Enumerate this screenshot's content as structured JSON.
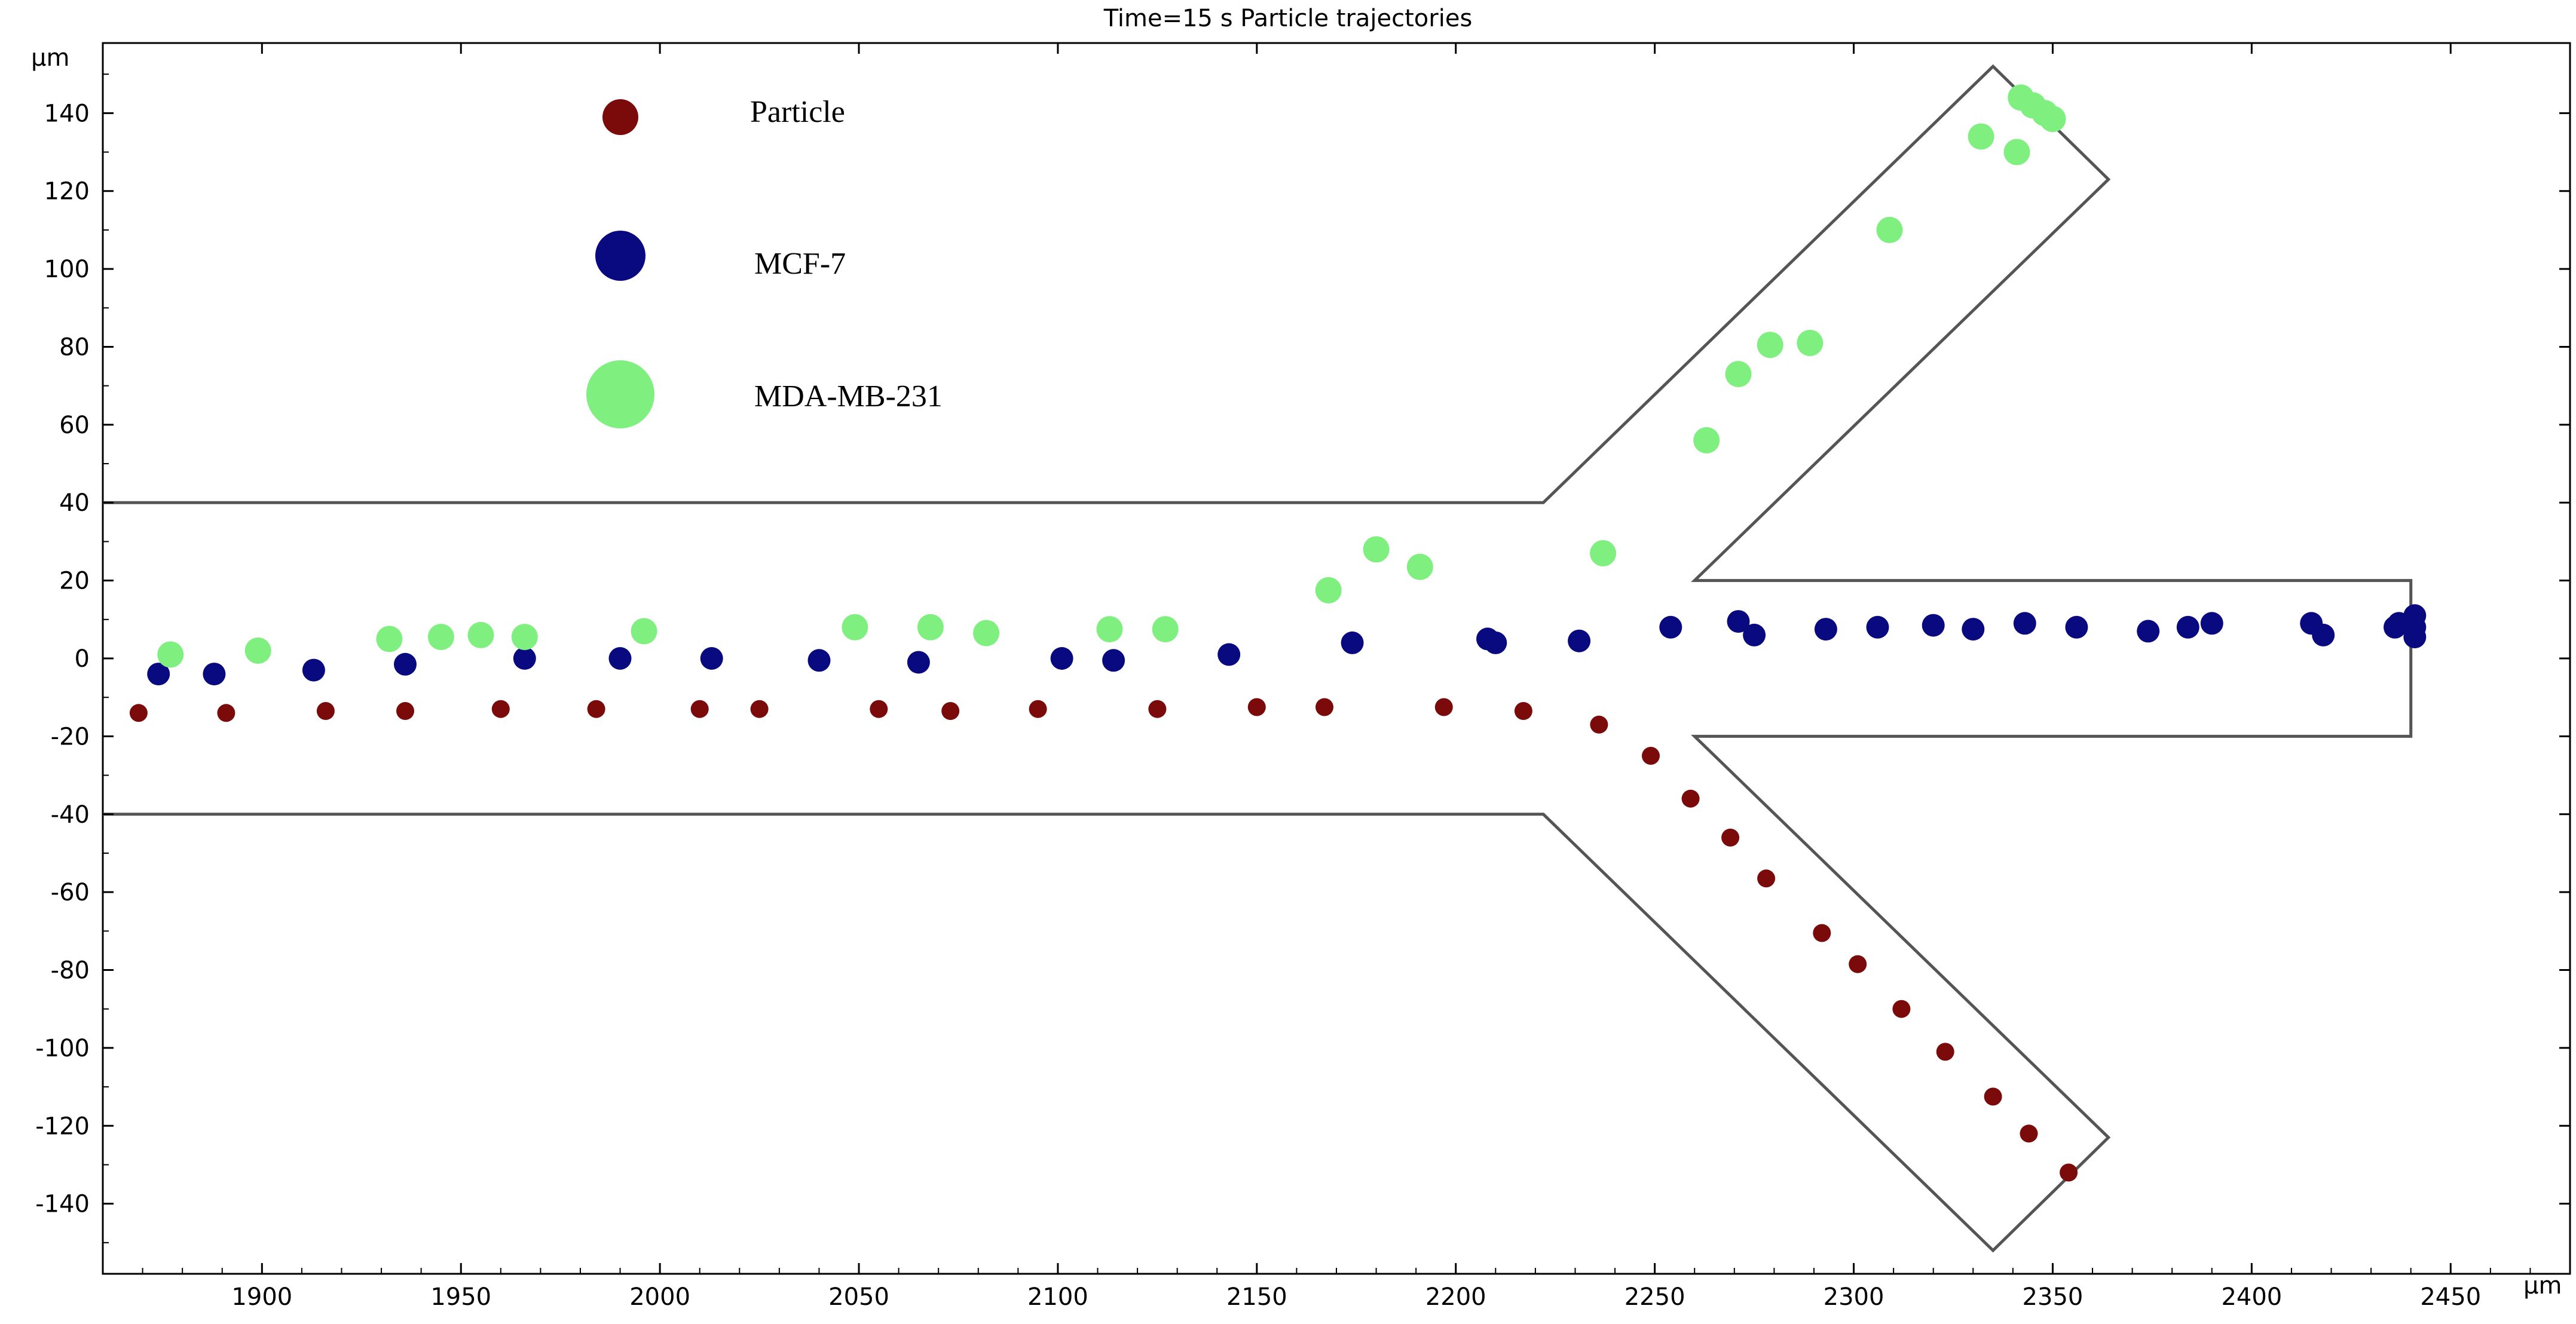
{
  "chart_data": {
    "type": "scatter",
    "title": "Time=15 s  Particle trajectories",
    "xlabel": "μm",
    "ylabel": "μm",
    "xlim": [
      1860,
      2480
    ],
    "ylim": [
      -158,
      158
    ],
    "xticks": [
      1900,
      1950,
      2000,
      2050,
      2100,
      2150,
      2200,
      2250,
      2300,
      2350,
      2400,
      2450
    ],
    "yticks": [
      140,
      120,
      100,
      80,
      60,
      40,
      20,
      0,
      -20,
      -40,
      -60,
      -80,
      -100,
      -120,
      -140
    ],
    "grid": false,
    "legend_position": "top-left",
    "channel_outline": [
      [
        1860,
        40
      ],
      [
        2222,
        40
      ],
      [
        2335,
        152
      ],
      [
        2364,
        123
      ],
      [
        2260,
        20
      ],
      [
        2440,
        20
      ],
      [
        2440,
        -20
      ],
      [
        2260,
        -20
      ],
      [
        2364,
        -123
      ],
      [
        2335,
        -152
      ],
      [
        2222,
        -40
      ],
      [
        1860,
        -40
      ]
    ],
    "series": [
      {
        "name": "Particle",
        "color": "#7b0a0a",
        "marker_size": "small",
        "points": [
          [
            1869,
            -14
          ],
          [
            1891,
            -14
          ],
          [
            1916,
            -13.5
          ],
          [
            1936,
            -13.5
          ],
          [
            1960,
            -13
          ],
          [
            1984,
            -13
          ],
          [
            2010,
            -13
          ],
          [
            2025,
            -13
          ],
          [
            2055,
            -13
          ],
          [
            2073,
            -13.5
          ],
          [
            2095,
            -13
          ],
          [
            2125,
            -13
          ],
          [
            2150,
            -12.5
          ],
          [
            2167,
            -12.5
          ],
          [
            2197,
            -12.5
          ],
          [
            2217,
            -13.5
          ],
          [
            2236,
            -17
          ],
          [
            2249,
            -25
          ],
          [
            2259,
            -36
          ],
          [
            2269,
            -46
          ],
          [
            2278,
            -56.5
          ],
          [
            2292,
            -70.5
          ],
          [
            2301,
            -78.5
          ],
          [
            2312,
            -90
          ],
          [
            2323,
            -101
          ],
          [
            2335,
            -112.5
          ],
          [
            2344,
            -122
          ],
          [
            2354,
            -132
          ]
        ]
      },
      {
        "name": "MCF-7",
        "color": "#0a0a80",
        "marker_size": "medium",
        "points": [
          [
            1874,
            -4
          ],
          [
            1888,
            -4
          ],
          [
            1913,
            -3
          ],
          [
            1936,
            -1.5
          ],
          [
            1966,
            0
          ],
          [
            1990,
            0
          ],
          [
            2013,
            0
          ],
          [
            2040,
            -0.5
          ],
          [
            2065,
            -1
          ],
          [
            2101,
            0
          ],
          [
            2114,
            -0.5
          ],
          [
            2143,
            1
          ],
          [
            2174,
            4
          ],
          [
            2208,
            5
          ],
          [
            2210,
            4
          ],
          [
            2231,
            4.5
          ],
          [
            2254,
            8
          ],
          [
            2271,
            9.5
          ],
          [
            2275,
            6
          ],
          [
            2293,
            7.5
          ],
          [
            2306,
            8
          ],
          [
            2320,
            8.5
          ],
          [
            2330,
            7.5
          ],
          [
            2343,
            9
          ],
          [
            2356,
            8
          ],
          [
            2374,
            7
          ],
          [
            2384,
            8
          ],
          [
            2390,
            9
          ],
          [
            2415,
            9
          ],
          [
            2418,
            6
          ],
          [
            2436,
            8
          ],
          [
            2437,
            9
          ],
          [
            2441,
            11
          ],
          [
            2441,
            8
          ],
          [
            2441,
            5.5
          ]
        ]
      },
      {
        "name": "MDA-MB-231",
        "color": "#7ff07f",
        "marker_size": "large",
        "points": [
          [
            1877,
            1
          ],
          [
            1899,
            2
          ],
          [
            1932,
            5
          ],
          [
            1945,
            5.5
          ],
          [
            1955,
            6
          ],
          [
            1966,
            5.5
          ],
          [
            1996,
            7
          ],
          [
            2049,
            8
          ],
          [
            2068,
            8
          ],
          [
            2082,
            6.5
          ],
          [
            2113,
            7.5
          ],
          [
            2127,
            7.5
          ],
          [
            2168,
            17.5
          ],
          [
            2180,
            28
          ],
          [
            2191,
            23.5
          ],
          [
            2237,
            27
          ],
          [
            2263,
            56
          ],
          [
            2271,
            73
          ],
          [
            2279,
            80.5
          ],
          [
            2289,
            81
          ],
          [
            2309,
            110
          ],
          [
            2332,
            134
          ],
          [
            2341,
            130
          ],
          [
            2342,
            144
          ],
          [
            2345,
            142
          ],
          [
            2348,
            140
          ],
          [
            2350,
            138.5
          ]
        ]
      }
    ]
  }
}
